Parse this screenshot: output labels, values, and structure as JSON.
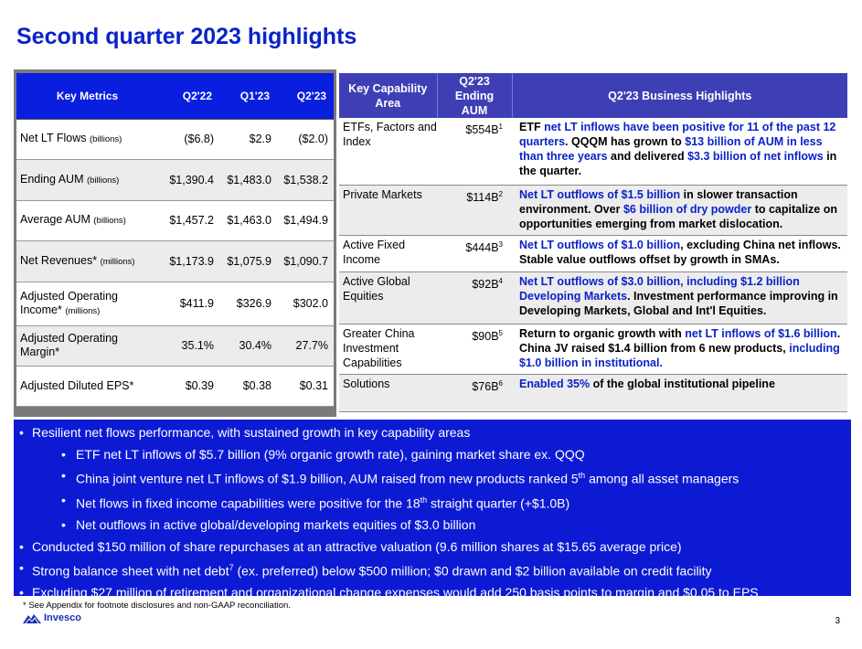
{
  "title": "Second quarter 2023 highlights",
  "key_metrics": {
    "headers": [
      "Key Metrics",
      "Q2'22",
      "Q1'23",
      "Q2'23"
    ],
    "rows": [
      {
        "label": "Net LT Flows",
        "unit": "(billions)",
        "values": [
          "($6.8)",
          "$2.9",
          "($2.0)"
        ]
      },
      {
        "label": "Ending AUM",
        "unit": "(billions)",
        "values": [
          "$1,390.4",
          "$1,483.0",
          "$1,538.2"
        ]
      },
      {
        "label": "Average AUM",
        "unit": "(billions)",
        "values": [
          "$1,457.2",
          "$1,463.0",
          "$1,494.9"
        ]
      },
      {
        "label": "Net Revenues*",
        "unit": "(millions)",
        "values": [
          "$1,173.9",
          "$1,075.9",
          "$1,090.7"
        ]
      },
      {
        "label": "Adjusted Operating Income*",
        "unit": "(millions)",
        "values": [
          "$411.9",
          "$326.9",
          "$302.0"
        ]
      },
      {
        "label": "Adjusted Operating Margin*",
        "unit": "",
        "values": [
          "35.1%",
          "30.4%",
          "27.7%"
        ]
      },
      {
        "label": "Adjusted Diluted EPS*",
        "unit": "",
        "values": [
          "$0.39",
          "$0.38",
          "$0.31"
        ]
      }
    ]
  },
  "capabilities": {
    "headers": {
      "area": "Key Capability Area",
      "aum": "Q2'23 Ending AUM",
      "highlights": "Q2'23 Business Highlights"
    },
    "rows": [
      {
        "area": "ETFs, Factors and Index",
        "aum": "$554B",
        "fn": "1",
        "h": [
          [
            "ETF ",
            false
          ],
          [
            "net LT inflows have been positive for 11 of the past 12 quarters",
            true
          ],
          [
            ". QQQM has grown to ",
            false
          ],
          [
            "$13 billion of AUM in less than three years",
            true
          ],
          [
            " and delivered ",
            false
          ],
          [
            "$3.3 billion of net inflows",
            true
          ],
          [
            " in the quarter.",
            false
          ]
        ]
      },
      {
        "area": "Private Markets",
        "aum": "$114B",
        "fn": "2",
        "h": [
          [
            "Net LT outflows of $1.5 billion",
            true
          ],
          [
            " in slower transaction environment. Over ",
            false
          ],
          [
            "$6 billion of dry powder",
            true
          ],
          [
            " to capitalize on opportunities emerging from market dislocation.",
            false
          ]
        ]
      },
      {
        "area": "Active Fixed Income",
        "aum": "$444B",
        "fn": "3",
        "h": [
          [
            "Net LT outflows of $1.0 billion",
            true
          ],
          [
            ", excluding China net inflows. Stable value outflows offset by growth in SMAs.",
            false
          ]
        ]
      },
      {
        "area": "Active Global Equities",
        "aum": "$92B",
        "fn": "4",
        "h": [
          [
            "Net LT outflows of $3.0 billion, including $1.2 billion Developing Markets",
            true
          ],
          [
            ". Investment performance improving in Developing Markets, Global and Int'l Equities.",
            false
          ]
        ]
      },
      {
        "area": "Greater China Investment Capabilities",
        "aum": "$90B",
        "fn": "5",
        "h": [
          [
            "Return to organic growth with ",
            false
          ],
          [
            "net LT inflows of $1.6 billion",
            true
          ],
          [
            ". China JV raised $1.4 billion from 6 new products, ",
            false
          ],
          [
            "including $1.0 billion in institutional.",
            true
          ]
        ]
      },
      {
        "area": "Solutions",
        "aum": "$76B",
        "fn": "6",
        "h": [
          [
            "Enabled 35%",
            true
          ],
          [
            " of the global institutional pipeline",
            false
          ]
        ]
      }
    ]
  },
  "bullets": {
    "b1": "Resilient net flows performance, with sustained growth in key capability areas",
    "b1a": "ETF net LT inflows of $5.7 billion (9% organic growth rate), gaining market share ex. QQQ",
    "b1b_pre": "China joint venture net LT inflows of $1.9 billion, AUM raised from new products ranked 5",
    "b1b_sup": "th",
    "b1b_post": " among all asset managers",
    "b1c_pre": "Net flows in fixed income capabilities were positive for the 18",
    "b1c_sup": "th",
    "b1c_post": " straight quarter (+$1.0B)",
    "b1d": "Net outflows in active global/developing markets equities of $3.0 billion",
    "b2": "Conducted $150 million of share repurchases at an attractive valuation (9.6 million shares at $15.65 average price)",
    "b3_pre": "Strong balance sheet with net debt",
    "b3_sup": "7",
    "b3_post": " (ex. preferred) below $500 million; $0 drawn and $2 billion available on credit facility",
    "b4": "Excluding $27 million of retirement and organizational change expenses would add 250 basis points to margin and $0.05 to EPS"
  },
  "footnote": "* See Appendix for footnote disclosures and non-GAAP reconciliation.",
  "logo_text": "Invesco",
  "page_number": "3",
  "colors": {
    "title": "#0a22c7",
    "header_blue": "#0a1ee0",
    "header_purple": "#3f3fb5",
    "panel_blue": "#0d1ad4"
  },
  "icons": {
    "logo": "invesco-mountain-icon"
  }
}
